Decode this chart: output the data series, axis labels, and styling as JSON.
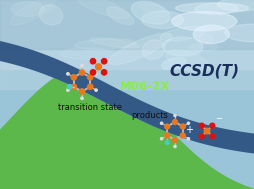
{
  "bg_top_color": "#b8d8e8",
  "bg_mid_color": "#90bcd4",
  "dark_blue_band_color": "#2a5080",
  "dark_blue_band_color2": "#1e3f6a",
  "green_hill_color": "#5cb84a",
  "green_hill_dark": "#3d9930",
  "label_ccsd": "CCSD(T)",
  "label_m06": "M06-2X",
  "label_ts": "transition state",
  "label_products": "products",
  "label_ccsd_color": "#1a2e5c",
  "label_m06_color": "#88ee44",
  "label_ts_color": "#111111",
  "label_products_color": "#111111",
  "figsize": [
    2.55,
    1.89
  ],
  "dpi": 100
}
